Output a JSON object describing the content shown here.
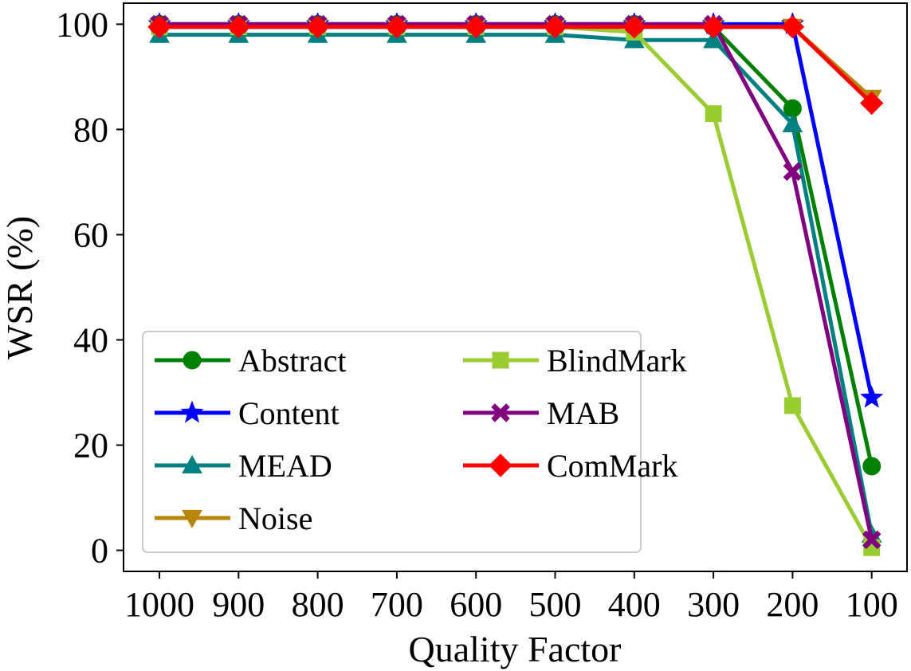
{
  "chart_data": {
    "type": "line",
    "x": [
      "1000",
      "900",
      "800",
      "700",
      "600",
      "500",
      "400",
      "300",
      "200",
      "100"
    ],
    "xlabel": "Quality Factor",
    "ylabel": "WSR (%)",
    "ylim": [
      -4,
      104
    ],
    "yticks": [
      0,
      20,
      40,
      60,
      80,
      100
    ],
    "grid": false,
    "legend_position": "lower-left",
    "series": [
      {
        "name": "Abstract",
        "color": "#008000",
        "marker": "circle",
        "values": [
          100,
          100,
          100,
          100,
          100,
          100,
          100,
          99.5,
          84,
          16
        ]
      },
      {
        "name": "Content",
        "color": "#0000ff",
        "marker": "star",
        "values": [
          100,
          100,
          100,
          100,
          100,
          100,
          100,
          100,
          100,
          29
        ]
      },
      {
        "name": "MEAD",
        "color": "#008080",
        "marker": "triangle-up",
        "values": [
          98,
          98,
          98,
          98,
          98,
          98,
          97,
          97,
          81,
          3
        ]
      },
      {
        "name": "Noise",
        "color": "#b8860b",
        "marker": "triangle-down",
        "values": [
          99.5,
          99.5,
          99.5,
          99.5,
          99.5,
          99.5,
          99.5,
          99.5,
          99.5,
          86
        ]
      },
      {
        "name": "BlindMark",
        "color": "#9acd32",
        "marker": "square",
        "values": [
          99.5,
          99.5,
          99.5,
          99.5,
          99.5,
          99.5,
          98.5,
          83,
          27.5,
          0.5
        ]
      },
      {
        "name": "MAB",
        "color": "#800080",
        "marker": "x",
        "values": [
          100,
          100,
          100,
          100,
          100,
          100,
          100,
          100,
          72,
          2
        ]
      },
      {
        "name": "ComMark",
        "color": "#ff0000",
        "marker": "diamond",
        "values": [
          99.5,
          99.5,
          99.5,
          99.5,
          99.5,
          99.5,
          99.5,
          99.5,
          99.5,
          85
        ]
      }
    ],
    "legend_order": [
      "Abstract",
      "BlindMark",
      "Content",
      "MAB",
      "MEAD",
      "ComMark",
      "Noise"
    ]
  }
}
